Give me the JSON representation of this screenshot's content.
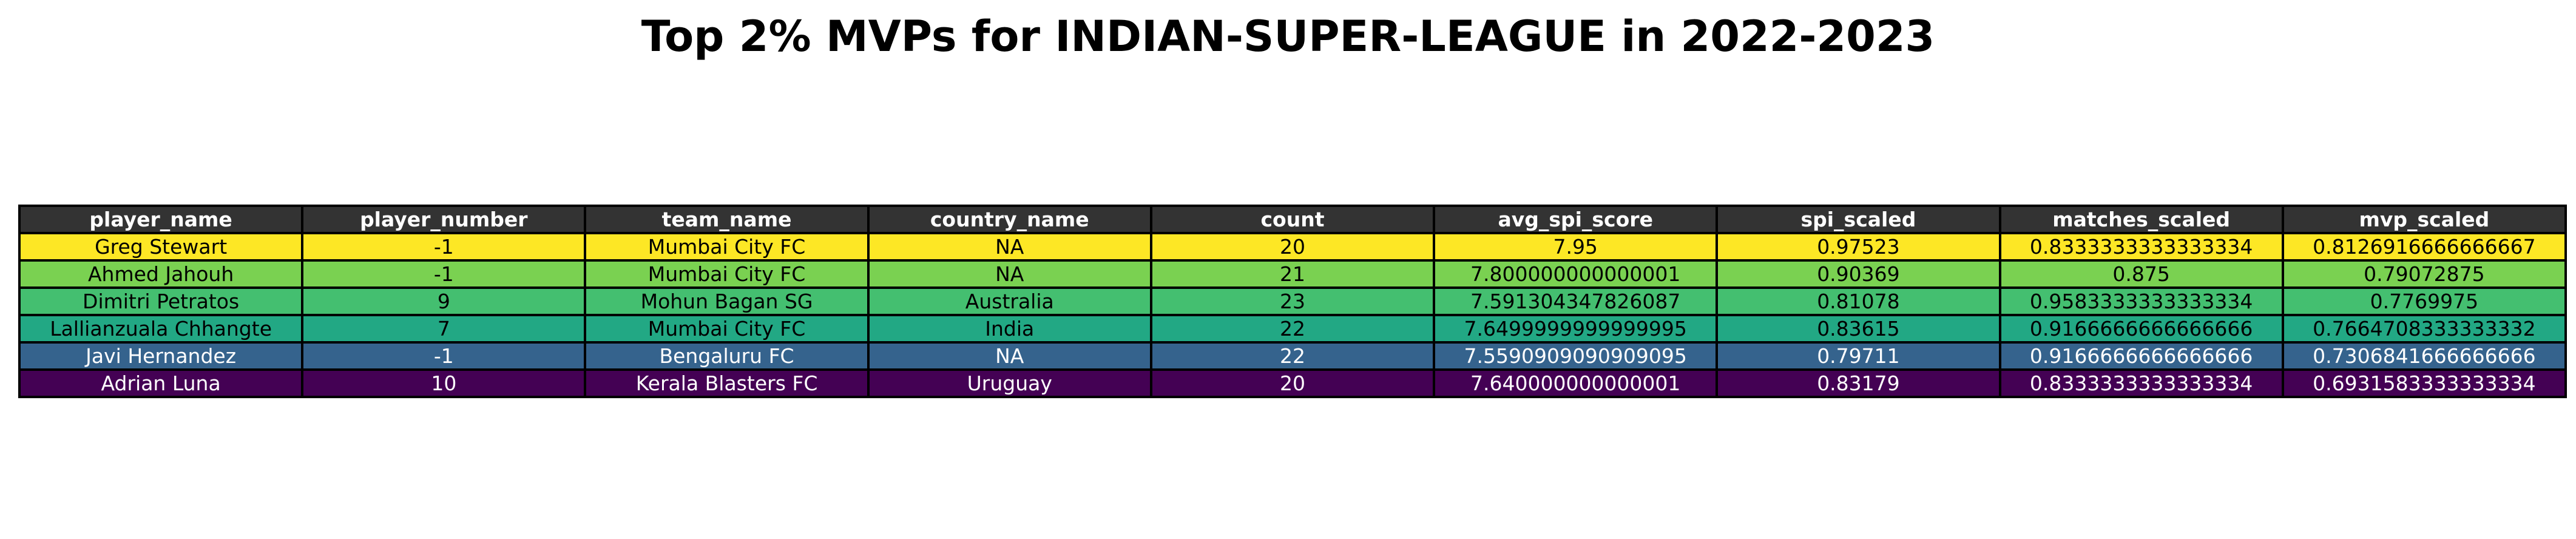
{
  "chart_data": {
    "type": "table",
    "title": "Top 2% MVPs for INDIAN-SUPER-LEAGUE in 2022-2023",
    "header_color": "#333333",
    "columns": [
      "player_name",
      "player_number",
      "team_name",
      "country_name",
      "count",
      "avg_spi_score",
      "spi_scaled",
      "matches_scaled",
      "mvp_scaled"
    ],
    "rows": [
      {
        "color": "#fde725",
        "text_color": "#000000",
        "cells": [
          "Greg Stewart",
          "-1",
          "Mumbai City FC",
          "NA",
          "20",
          "7.95",
          "0.97523",
          "0.8333333333333334",
          "0.8126916666666667"
        ]
      },
      {
        "color": "#7ad151",
        "text_color": "#000000",
        "cells": [
          "Ahmed Jahouh",
          "-1",
          "Mumbai City FC",
          "NA",
          "21",
          "7.800000000000001",
          "0.90369",
          "0.875",
          "0.79072875"
        ]
      },
      {
        "color": "#44bf70",
        "text_color": "#000000",
        "cells": [
          "Dimitri Petratos",
          "9",
          "Mohun Bagan SG",
          "Australia",
          "23",
          "7.591304347826087",
          "0.81078",
          "0.9583333333333334",
          "0.7769975"
        ]
      },
      {
        "color": "#22a884",
        "text_color": "#000000",
        "cells": [
          "Lallianzuala Chhangte",
          "7",
          "Mumbai City FC",
          "India",
          "22",
          "7.6499999999999995",
          "0.83615",
          "0.9166666666666666",
          "0.7664708333333332"
        ]
      },
      {
        "color": "#35638d",
        "text_color": "#ffffff",
        "cells": [
          "Javi Hernandez",
          "-1",
          "Bengaluru FC",
          "NA",
          "22",
          "7.5590909090909095",
          "0.79711",
          "0.9166666666666666",
          "0.7306841666666666"
        ]
      },
      {
        "color": "#440154",
        "text_color": "#ffffff",
        "cells": [
          "Adrian Luna",
          "10",
          "Kerala Blasters FC",
          "Uruguay",
          "20",
          "7.640000000000001",
          "0.83179",
          "0.8333333333333334",
          "0.6931583333333334"
        ]
      }
    ]
  }
}
